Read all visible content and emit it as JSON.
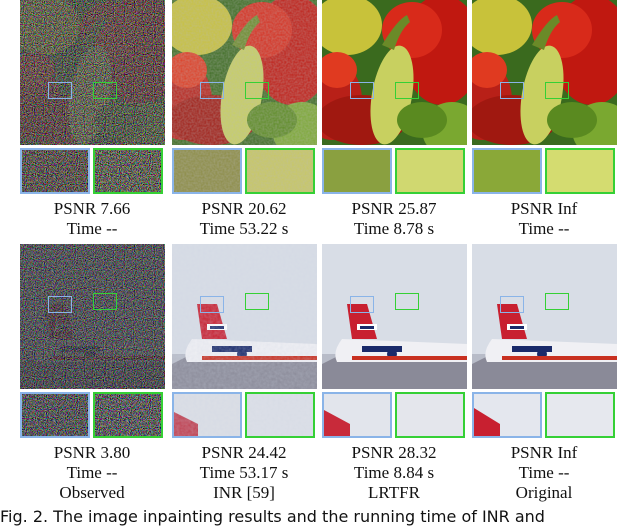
{
  "rows": [
    {
      "image": "pepper",
      "panels": [
        {
          "psnr": "PSNR 7.66",
          "time": "Time --"
        },
        {
          "psnr": "PSNR 20.62",
          "time": "Time 53.22 s"
        },
        {
          "psnr": "PSNR 25.87",
          "time": "Time 8.78 s"
        },
        {
          "psnr": "PSNR Inf",
          "time": "Time --"
        }
      ]
    },
    {
      "image": "airplane",
      "panels": [
        {
          "psnr": "PSNR 3.80",
          "time": "Time --"
        },
        {
          "psnr": "PSNR 24.42",
          "time": "Time 53.17 s"
        },
        {
          "psnr": "PSNR 28.32",
          "time": "Time 8.84 s"
        },
        {
          "psnr": "PSNR Inf",
          "time": "Time --"
        }
      ]
    }
  ],
  "methods": [
    "Observed",
    "INR [59]",
    "LRTFR",
    "Original"
  ],
  "caption": "Fig. 2.  The image inpainting results and the running time of INR and",
  "colors": {
    "zoom_blue": "#8ab4e8",
    "zoom_green": "#35d035"
  }
}
